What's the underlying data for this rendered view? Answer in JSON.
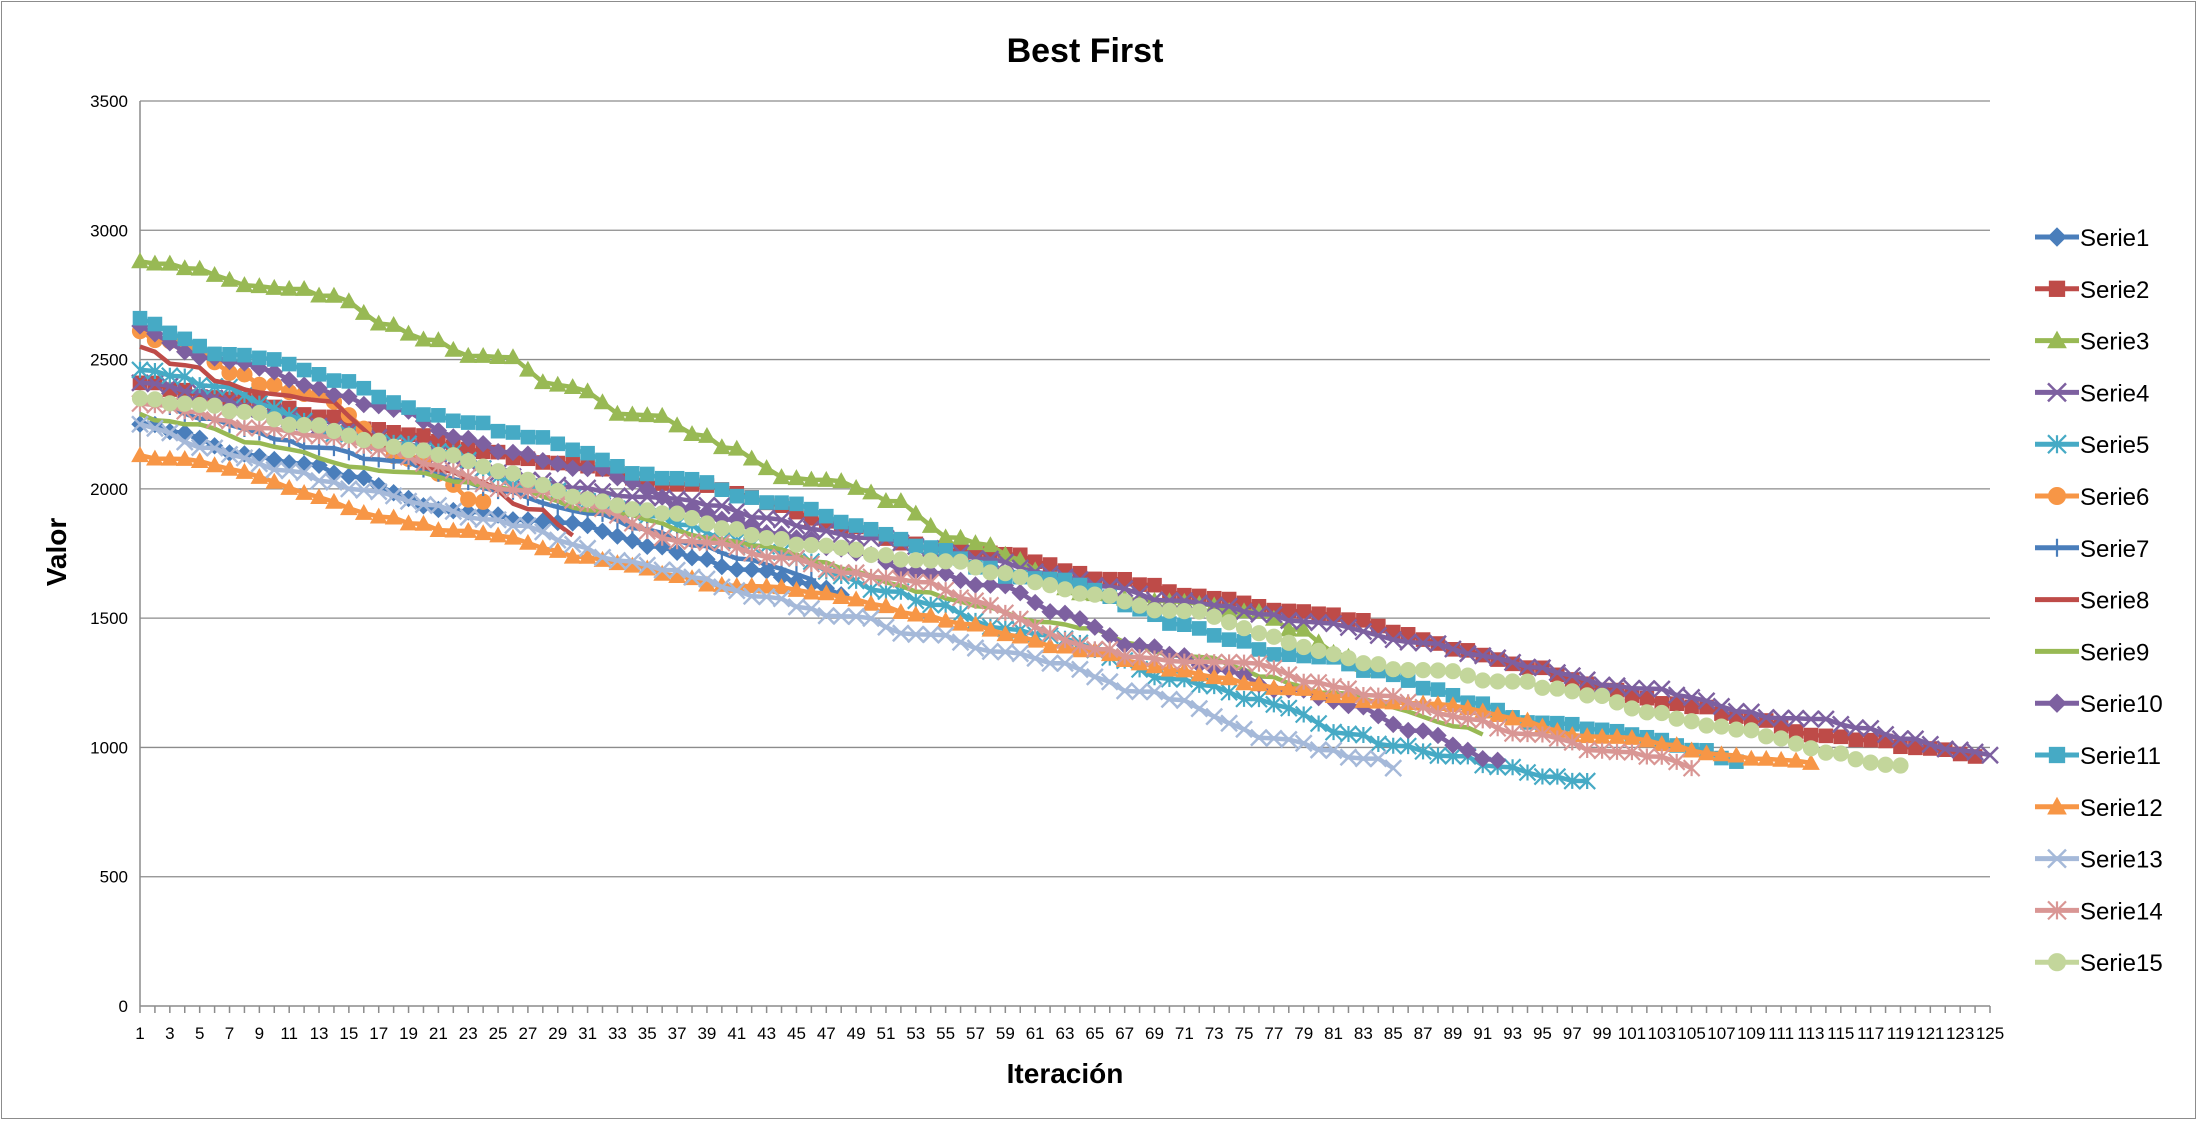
{
  "chart_data": {
    "type": "line",
    "title": "Best First",
    "xlabel": "Iteración",
    "ylabel": "Valor",
    "ylim": [
      0,
      3500
    ],
    "yticks": [
      0,
      500,
      1000,
      1500,
      2000,
      2500,
      3000,
      3500
    ],
    "xlim": [
      1,
      125
    ],
    "xtick_labels": [
      "1",
      "3",
      "5",
      "7",
      "9",
      "11",
      "13",
      "15",
      "17",
      "19",
      "21",
      "23",
      "25",
      "27",
      "29",
      "31",
      "33",
      "35",
      "37",
      "39",
      "41",
      "43",
      "45",
      "47",
      "49",
      "51",
      "53",
      "55",
      "57",
      "59",
      "61",
      "63",
      "65",
      "67",
      "69",
      "71",
      "73",
      "75",
      "77",
      "79",
      "81",
      "83",
      "85",
      "87",
      "89",
      "91",
      "93",
      "95",
      "97",
      "99",
      "101",
      "103",
      "105",
      "107",
      "109",
      "111",
      "113",
      "115",
      "117",
      "119",
      "121",
      "123",
      "125"
    ],
    "grid": true,
    "legend": "right",
    "series": [
      {
        "name": "Serie1",
        "color": "#4a7ebb",
        "marker": "diamond",
        "length": 48,
        "start": 2250,
        "end": 1590
      },
      {
        "name": "Serie2",
        "color": "#be4b48",
        "marker": "square",
        "length": 124,
        "start": 2410,
        "end": 965
      },
      {
        "name": "Serie3",
        "color": "#98b954",
        "marker": "triangle",
        "length": 84,
        "start": 2880,
        "end": 1300
      },
      {
        "name": "Serie4",
        "color": "#7d60a0",
        "marker": "x",
        "length": 125,
        "start": 2410,
        "end": 970
      },
      {
        "name": "Serie5",
        "color": "#46aac5",
        "marker": "star",
        "length": 98,
        "start": 2460,
        "end": 870
      },
      {
        "name": "Serie6",
        "color": "#f79646",
        "marker": "circle",
        "length": 24,
        "start": 2610,
        "end": 1950
      },
      {
        "name": "Serie7",
        "color": "#4a7ebb",
        "marker": "plus",
        "length": 46,
        "start": 2350,
        "end": 1650
      },
      {
        "name": "Serie8",
        "color": "#be4b48",
        "marker": "none",
        "length": 30,
        "start": 2550,
        "end": 1820
      },
      {
        "name": "Serie9",
        "color": "#98b954",
        "marker": "none",
        "length": 91,
        "start": 2290,
        "end": 1050
      },
      {
        "name": "Serie10",
        "color": "#7d60a0",
        "marker": "diamond",
        "length": 92,
        "start": 2630,
        "end": 950
      },
      {
        "name": "Serie11",
        "color": "#46aac5",
        "marker": "square",
        "length": 108,
        "start": 2660,
        "end": 945
      },
      {
        "name": "Serie12",
        "color": "#f79646",
        "marker": "triangle",
        "length": 113,
        "start": 2130,
        "end": 940
      },
      {
        "name": "Serie13",
        "color": "#a5b9d9",
        "marker": "x",
        "length": 85,
        "start": 2250,
        "end": 920
      },
      {
        "name": "Serie14",
        "color": "#d99694",
        "marker": "star",
        "length": 105,
        "start": 2330,
        "end": 920
      },
      {
        "name": "Serie15",
        "color": "#c3d69b",
        "marker": "circle",
        "length": 119,
        "start": 2350,
        "end": 930
      }
    ]
  }
}
